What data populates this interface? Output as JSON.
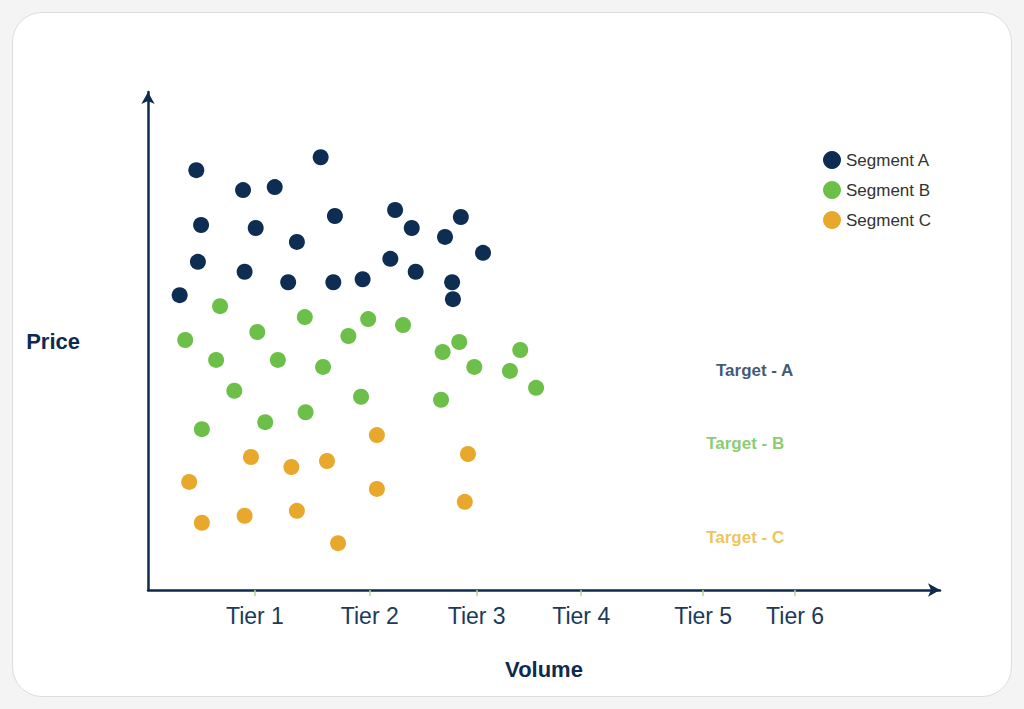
{
  "chart_data": {
    "type": "scatter",
    "x_label": "Volume",
    "y_label": "Price",
    "xlim": [
      0,
      100
    ],
    "ylim": [
      0,
      100
    ],
    "xticks": [
      {
        "value": 13.5,
        "label": "Tier 1"
      },
      {
        "value": 28.0,
        "label": "Tier 2"
      },
      {
        "value": 41.5,
        "label": "Tier 3"
      },
      {
        "value": 54.7,
        "label": "Tier 4"
      },
      {
        "value": 70.1,
        "label": "Tier 5"
      },
      {
        "value": 81.7,
        "label": "Tier 6"
      }
    ],
    "tick_labels": "x",
    "grid": false,
    "legend": "top-right",
    "series": [
      {
        "name": "Segment A",
        "color": "#0d2e52",
        "x": [
          6.1,
          12.0,
          16.0,
          21.8,
          6.7,
          13.6,
          18.8,
          23.6,
          31.2,
          33.3,
          39.5,
          37.5,
          6.3,
          12.2,
          17.7,
          23.4,
          27.1,
          30.6,
          33.8,
          38.4,
          42.3,
          38.5,
          4.0
        ],
        "values": [
          84.3,
          80.3,
          80.9,
          86.9,
          73.3,
          72.7,
          69.9,
          75.1,
          76.3,
          72.7,
          74.9,
          70.9,
          65.9,
          63.9,
          61.8,
          61.8,
          62.4,
          66.5,
          63.9,
          61.8,
          67.7,
          58.4,
          59.2
        ]
      },
      {
        "name": "Segment B",
        "color": "#6cc04a",
        "x": [
          9.1,
          4.7,
          13.8,
          19.8,
          25.3,
          27.8,
          32.2,
          8.6,
          16.4,
          22.1,
          37.2,
          39.3,
          47.0,
          10.9,
          26.9,
          41.2,
          45.7,
          49.0,
          37.0,
          6.8,
          14.8,
          19.9
        ],
        "values": [
          57.0,
          50.2,
          51.8,
          54.8,
          51.0,
          54.4,
          53.2,
          46.2,
          46.2,
          44.8,
          47.8,
          49.8,
          48.2,
          40.0,
          38.8,
          44.8,
          44.0,
          40.6,
          38.2,
          32.3,
          33.7,
          35.7
        ]
      },
      {
        "name": "Segment C",
        "color": "#e8a82c",
        "x": [
          5.2,
          6.8,
          13.0,
          12.2,
          18.1,
          18.8,
          22.6,
          24.0,
          28.9,
          28.9,
          40.4,
          40.0
        ],
        "values": [
          21.7,
          13.5,
          26.7,
          14.9,
          24.7,
          15.9,
          25.9,
          9.4,
          31.1,
          20.3,
          27.3,
          17.7
        ]
      }
    ],
    "annotations": [
      {
        "text": "Target - A",
        "x": 76.6,
        "y": 44.0,
        "color": "#0d2e52"
      },
      {
        "text": "Target - B",
        "x": 75.4,
        "y": 29.5,
        "color": "#6cc04a"
      },
      {
        "text": "Target - C",
        "x": 75.4,
        "y": 10.6,
        "color": "#e8b530"
      }
    ]
  }
}
